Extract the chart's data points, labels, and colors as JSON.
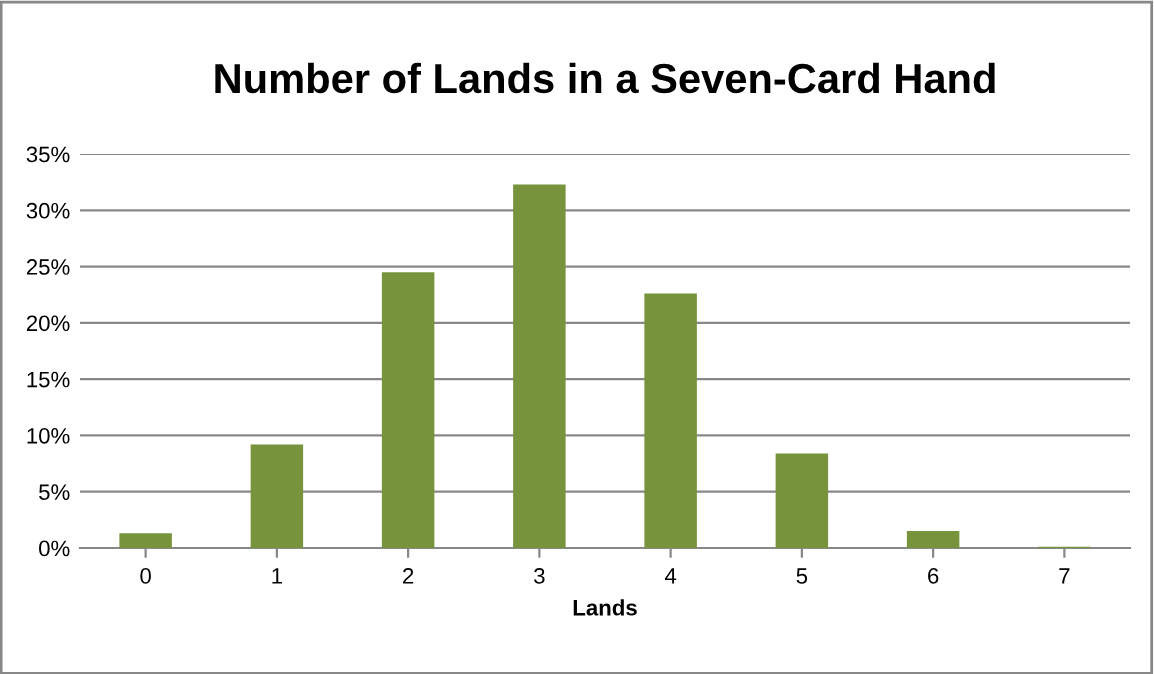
{
  "chart_data": {
    "type": "bar",
    "title": "Number of Lands in a Seven-Card Hand",
    "xlabel": "Lands",
    "categories": [
      "0",
      "1",
      "2",
      "3",
      "4",
      "5",
      "6",
      "7"
    ],
    "values": [
      1.3,
      9.2,
      24.5,
      32.3,
      22.6,
      8.4,
      1.5,
      0.1
    ],
    "color": "#77933c",
    "ylim": [
      0,
      35
    ],
    "yticks": [
      {
        "value": 0,
        "label": "0%"
      },
      {
        "value": 5,
        "label": "5%"
      },
      {
        "value": 10,
        "label": "10%"
      },
      {
        "value": 15,
        "label": "15%"
      },
      {
        "value": 20,
        "label": "20%"
      },
      {
        "value": 25,
        "label": "25%"
      },
      {
        "value": 30,
        "label": "30%"
      },
      {
        "value": 35,
        "label": "35%"
      }
    ],
    "grid": "y",
    "legend": false
  }
}
